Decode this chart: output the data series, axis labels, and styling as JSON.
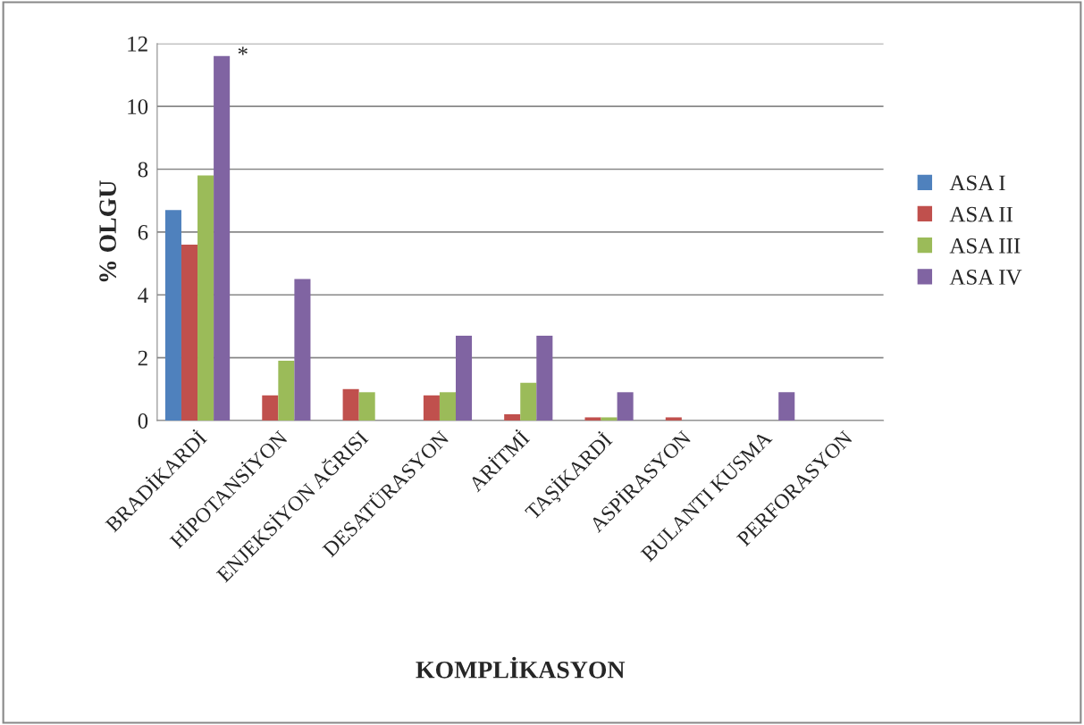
{
  "chart_data": {
    "type": "bar",
    "xlabel": "KOMPLİKASYON",
    "ylabel": "% OLGU",
    "categories": [
      "BRADİKARDİ",
      "HİPOTANSİYON",
      "ENJEKSİYON AĞRISI",
      "DESATÜRASYON",
      "ARİTMİ",
      "TAŞİKARDİ",
      "ASPİRASYON",
      "BULANTI KUSMA",
      "PERFORASYON"
    ],
    "series": [
      {
        "name": "ASA I",
        "color": "#4f81bd",
        "values": [
          6.7,
          0,
          0,
          0,
          0,
          0,
          0,
          0,
          0
        ]
      },
      {
        "name": "ASA II",
        "color": "#c0504d",
        "values": [
          5.6,
          0.8,
          1.0,
          0.8,
          0.2,
          0.1,
          0.1,
          0,
          0
        ]
      },
      {
        "name": "ASA III",
        "color": "#9bbb59",
        "values": [
          7.8,
          1.9,
          0.9,
          0.9,
          1.2,
          0.1,
          0,
          0,
          0
        ]
      },
      {
        "name": "ASA IV",
        "color": "#8064a2",
        "values": [
          11.6,
          4.5,
          0,
          2.7,
          2.7,
          0.9,
          0,
          0.9,
          0
        ]
      }
    ],
    "annotations": [
      "*"
    ],
    "ylim": [
      0,
      12
    ],
    "yticks": [
      0,
      2,
      4,
      6,
      8,
      10,
      12
    ],
    "grid": "y",
    "legend": "right"
  }
}
